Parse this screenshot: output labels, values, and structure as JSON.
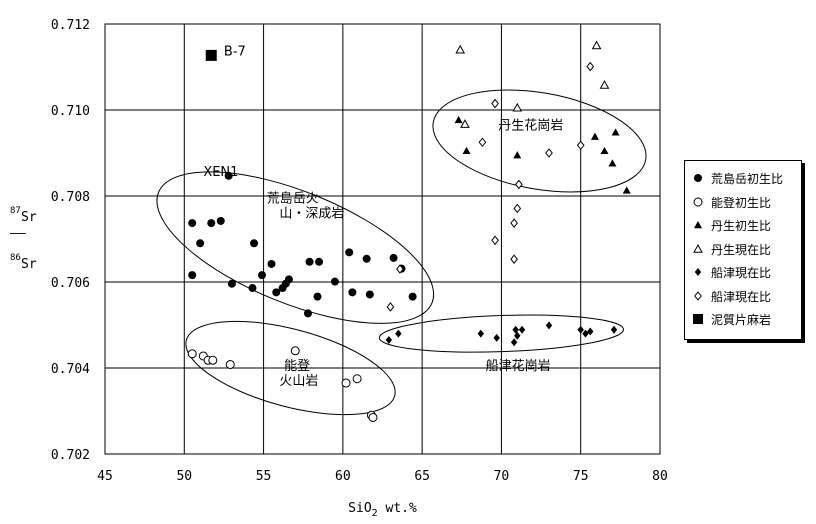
{
  "chart_data": {
    "type": "scatter",
    "xlabel": "SiO2 wt.%",
    "ylabel_parts": {
      "num_sup": "87",
      "num": "Sr",
      "den_sup": "86",
      "den": "Sr"
    },
    "xlim": [
      45,
      80
    ],
    "ylim": [
      0.702,
      0.712
    ],
    "x_ticks": [
      "45",
      "50",
      "55",
      "60",
      "65",
      "70",
      "75",
      "80"
    ],
    "y_ticks": [
      "0.702",
      "0.704",
      "0.706",
      "0.708",
      "0.710",
      "0.712"
    ],
    "grid": true,
    "legend_position": "right",
    "series": [
      {
        "name": "荒島岳初生比",
        "marker": "filled-circle",
        "points": [
          [
            52.8,
            0.70847
          ],
          [
            50.5,
            0.70737
          ],
          [
            51.7,
            0.70737
          ],
          [
            52.3,
            0.70742
          ],
          [
            51.0,
            0.7069
          ],
          [
            54.4,
            0.7069
          ],
          [
            50.5,
            0.70616
          ],
          [
            53.0,
            0.70596
          ],
          [
            54.9,
            0.70616
          ],
          [
            55.5,
            0.70642
          ],
          [
            54.3,
            0.70586
          ],
          [
            55.8,
            0.70576
          ],
          [
            56.2,
            0.70586
          ],
          [
            56.6,
            0.70606
          ],
          [
            56.4,
            0.70596
          ],
          [
            57.9,
            0.70647
          ],
          [
            58.5,
            0.70647
          ],
          [
            57.8,
            0.70527
          ],
          [
            58.4,
            0.70566
          ],
          [
            59.5,
            0.70601
          ],
          [
            60.4,
            0.70669
          ],
          [
            61.5,
            0.70654
          ],
          [
            60.6,
            0.70576
          ],
          [
            61.7,
            0.70571
          ],
          [
            63.2,
            0.70656
          ],
          [
            63.7,
            0.70631
          ],
          [
            64.4,
            0.70566
          ]
        ]
      },
      {
        "name": "能登初生比",
        "marker": "open-circle",
        "points": [
          [
            50.5,
            0.70433
          ],
          [
            51.2,
            0.70428
          ],
          [
            51.5,
            0.70418
          ],
          [
            51.8,
            0.70418
          ],
          [
            52.9,
            0.70408
          ],
          [
            57.0,
            0.7044
          ],
          [
            60.2,
            0.70365
          ],
          [
            60.9,
            0.70375
          ],
          [
            61.8,
            0.7029
          ],
          [
            61.9,
            0.70285
          ]
        ]
      },
      {
        "name": "丹生初生比",
        "marker": "filled-triangle",
        "points": [
          [
            67.3,
            0.70977
          ],
          [
            67.8,
            0.70905
          ],
          [
            71.0,
            0.70895
          ],
          [
            75.9,
            0.70938
          ],
          [
            76.5,
            0.70905
          ],
          [
            77.2,
            0.70948
          ],
          [
            77.0,
            0.70876
          ],
          [
            77.9,
            0.70813
          ]
        ]
      },
      {
        "name": "丹生現在比",
        "marker": "open-triangle",
        "points": [
          [
            67.4,
            0.7114
          ],
          [
            67.7,
            0.70967
          ],
          [
            71.0,
            0.71005
          ],
          [
            76.0,
            0.7115
          ],
          [
            76.5,
            0.71058
          ]
        ]
      },
      {
        "name": "船津現在比",
        "marker": "filled-diamond",
        "points": [
          [
            62.9,
            0.70465
          ],
          [
            63.5,
            0.7048
          ],
          [
            68.7,
            0.7048
          ],
          [
            69.7,
            0.7047
          ],
          [
            70.8,
            0.7046
          ],
          [
            70.9,
            0.70489
          ],
          [
            71.0,
            0.70475
          ],
          [
            71.3,
            0.70489
          ],
          [
            73.0,
            0.70499
          ],
          [
            75.0,
            0.70489
          ],
          [
            75.3,
            0.7048
          ],
          [
            75.6,
            0.70485
          ],
          [
            77.1,
            0.70489
          ]
        ]
      },
      {
        "name": "船津現在比",
        "marker": "open-diamond",
        "points": [
          [
            69.6,
            0.71015
          ],
          [
            68.8,
            0.70925
          ],
          [
            73.0,
            0.709
          ],
          [
            75.0,
            0.70918
          ],
          [
            75.6,
            0.71101
          ],
          [
            71.1,
            0.70827
          ],
          [
            70.8,
            0.70737
          ],
          [
            71.0,
            0.70771
          ],
          [
            69.6,
            0.70697
          ],
          [
            70.8,
            0.70653
          ],
          [
            63.0,
            0.70542
          ],
          [
            63.6,
            0.7063
          ]
        ]
      },
      {
        "name": "泥質片麻岩",
        "marker": "filled-square",
        "points": [
          [
            51.7,
            0.71127
          ]
        ]
      }
    ],
    "annotations": [
      {
        "text": "B-7",
        "x": 52.5,
        "y": 0.71127
      },
      {
        "text": "XEN1",
        "x": 51.2,
        "y": 0.70847
      },
      {
        "text": "荒島岳火",
        "x": 55.2,
        "y": 0.70785
      },
      {
        "text": "山・深成岩",
        "x": 56.0,
        "y": 0.7075
      },
      {
        "text": "丹生花崗岩",
        "x": 69.8,
        "y": 0.70955
      },
      {
        "text": "能登",
        "x": 56.3,
        "y": 0.70395
      },
      {
        "text": "火山岩",
        "x": 56.0,
        "y": 0.7036
      },
      {
        "text": "船津花崗岩",
        "x": 69.0,
        "y": 0.70395
      }
    ],
    "ellipses": [
      {
        "label": "荒島岳",
        "cx": 57.0,
        "cy": 0.7068,
        "rx": 9.3,
        "ry": 0.0013,
        "rotate": 22
      },
      {
        "label": "能登",
        "cx": 56.7,
        "cy": 0.704,
        "rx": 6.8,
        "ry": 0.0009,
        "rotate": 15
      },
      {
        "label": "丹生",
        "cx": 72.4,
        "cy": 0.70928,
        "rx": 6.8,
        "ry": 0.00112,
        "rotate": 10
      },
      {
        "label": "船津",
        "cx": 70.0,
        "cy": 0.7048,
        "rx": 7.7,
        "ry": 0.00042,
        "rotate": -2
      }
    ]
  }
}
